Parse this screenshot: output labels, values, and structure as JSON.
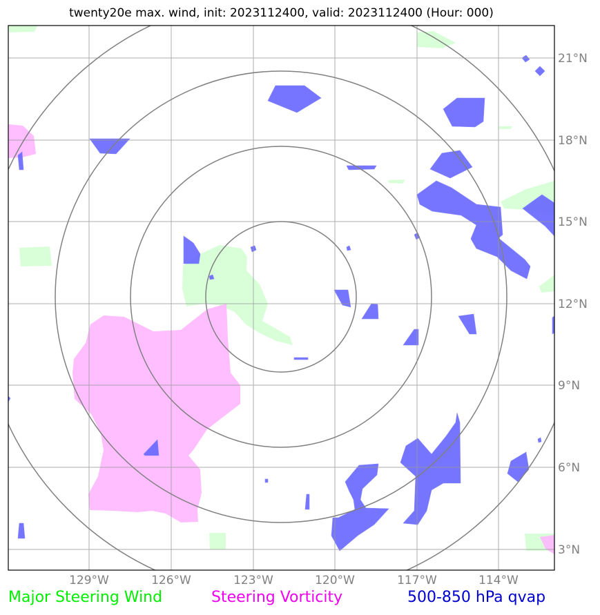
{
  "title": "twenty20e max. wind, init: 2023112400, valid: 2023112400 (Hour: 000)",
  "map": {
    "lon_ticks": [
      "129°W",
      "126°W",
      "123°W",
      "120°W",
      "117°W",
      "114°W"
    ],
    "lat_ticks": [
      "21°N",
      "18°N",
      "15°N",
      "12°N",
      "9°N",
      "6°N",
      "3°N"
    ],
    "range_rings": 4,
    "colors": {
      "major_steering_wind": "#ccffcc",
      "steering_vorticity": "#ffb3ff",
      "qvap": "#6666ff",
      "grid": "#999999",
      "rings": "#808080"
    }
  },
  "legend": {
    "wind": {
      "label": "Major Steering Wind",
      "color": "#00ee00"
    },
    "vorticity": {
      "label": "Steering Vorticity",
      "color": "#ee00ee"
    },
    "qvap": {
      "label": "500-850 hPa qvap",
      "color": "#0000cc"
    }
  }
}
